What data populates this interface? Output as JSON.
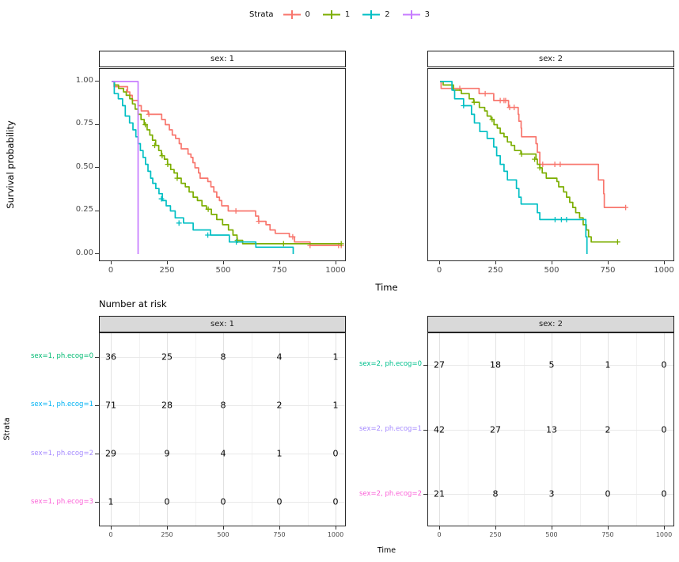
{
  "legend": {
    "title": "Strata",
    "items": [
      {
        "label": "0",
        "color": "#F8766D"
      },
      {
        "label": "1",
        "color": "#7CAE00"
      },
      {
        "label": "2",
        "color": "#00BFC4"
      },
      {
        "label": "3",
        "color": "#C77CFF"
      }
    ]
  },
  "facets": [
    {
      "title": "sex: 1"
    },
    {
      "title": "sex: 2"
    }
  ],
  "axes": {
    "y_label": "Survival probability",
    "y_ticks": [
      "1.00",
      "0.75",
      "0.50",
      "0.25",
      "0.00"
    ],
    "x_ticks": [
      "0",
      "250",
      "500",
      "750",
      "1000"
    ],
    "x_label": "Time"
  },
  "risk_table": {
    "title": "Number at risk",
    "y_label": "Strata",
    "x_label": "Time",
    "x_ticks": [
      "0",
      "250",
      "500",
      "750",
      "1000"
    ],
    "facets": [
      {
        "title": "sex: 1",
        "rows": [
          {
            "label": "sex=1, ph.ecog=0",
            "color": "#00BA72",
            "values": [
              36,
              25,
              8,
              4,
              1
            ]
          },
          {
            "label": "sex=1, ph.ecog=1",
            "color": "#00B2F3",
            "values": [
              71,
              28,
              8,
              2,
              1
            ]
          },
          {
            "label": "sex=1, ph.ecog=2",
            "color": "#A58AFF",
            "values": [
              29,
              9,
              4,
              1,
              0
            ]
          },
          {
            "label": "sex=1, ph.ecog=3",
            "color": "#FB61D7",
            "values": [
              1,
              0,
              0,
              0,
              0
            ]
          }
        ]
      },
      {
        "title": "sex: 2",
        "rows": [
          {
            "label": "sex=2, ph.ecog=0",
            "color": "#00C08D",
            "values": [
              27,
              18,
              5,
              1,
              0
            ]
          },
          {
            "label": "sex=2, ph.ecog=1",
            "color": "#A58AFF",
            "values": [
              42,
              27,
              13,
              2,
              0
            ]
          },
          {
            "label": "sex=2, ph.ecog=2",
            "color": "#FB61D7",
            "values": [
              21,
              8,
              3,
              0,
              0
            ]
          }
        ]
      }
    ]
  },
  "chart_data": [
    {
      "type": "line",
      "step": true,
      "title": "sex: 1",
      "xlabel": "Time",
      "ylabel": "Survival probability",
      "xlim": [
        0,
        1050
      ],
      "ylim": [
        0,
        1
      ],
      "x_ticks": [
        0,
        250,
        500,
        750,
        1000
      ],
      "y_ticks": [
        0,
        0.25,
        0.5,
        0.75,
        1
      ],
      "grid": false,
      "legend_position": "top",
      "series": [
        {
          "name": "0",
          "color": "#F8766D",
          "points": [
            [
              0,
              1.0
            ],
            [
              11,
              0.97
            ],
            [
              71,
              0.94
            ],
            [
              81,
              0.92
            ],
            [
              92,
              0.89
            ],
            [
              118,
              0.86
            ],
            [
              132,
              0.83
            ],
            [
              163,
              0.81
            ],
            [
              223,
              0.78
            ],
            [
              239,
              0.75
            ],
            [
              257,
              0.72
            ],
            [
              270,
              0.69
            ],
            [
              285,
              0.67
            ],
            [
              301,
              0.64
            ],
            [
              310,
              0.61
            ],
            [
              340,
              0.58
            ],
            [
              353,
              0.56
            ],
            [
              362,
              0.53
            ],
            [
              371,
              0.5
            ],
            [
              387,
              0.47
            ],
            [
              394,
              0.44
            ],
            [
              428,
              0.42
            ],
            [
              442,
              0.39
            ],
            [
              455,
              0.36
            ],
            [
              468,
              0.33
            ],
            [
              480,
              0.31
            ],
            [
              490,
              0.28
            ],
            [
              519,
              0.25
            ],
            [
              641,
              0.22
            ],
            [
              654,
              0.19
            ],
            [
              687,
              0.17
            ],
            [
              705,
              0.14
            ],
            [
              728,
              0.12
            ],
            [
              791,
              0.1
            ],
            [
              814,
              0.07
            ],
            [
              883,
              0.05
            ],
            [
              1022,
              0.05
            ]
          ],
          "censors": [
            [
              66,
              0.94
            ],
            [
              166,
              0.81
            ],
            [
              553,
              0.25
            ],
            [
              655,
              0.19
            ],
            [
              806,
              0.1
            ],
            [
              883,
              0.05
            ],
            [
              1010,
              0.05
            ],
            [
              1022,
              0.05
            ]
          ]
        },
        {
          "name": "1",
          "color": "#7CAE00",
          "points": [
            [
              0,
              1.0
            ],
            [
              13,
              0.98
            ],
            [
              31,
              0.96
            ],
            [
              53,
              0.94
            ],
            [
              65,
              0.92
            ],
            [
              81,
              0.9
            ],
            [
              93,
              0.87
            ],
            [
              105,
              0.84
            ],
            [
              118,
              0.81
            ],
            [
              131,
              0.78
            ],
            [
              145,
              0.75
            ],
            [
              158,
              0.72
            ],
            [
              170,
              0.69
            ],
            [
              182,
              0.66
            ],
            [
              196,
              0.63
            ],
            [
              210,
              0.6
            ],
            [
              222,
              0.57
            ],
            [
              235,
              0.55
            ],
            [
              249,
              0.52
            ],
            [
              263,
              0.49
            ],
            [
              278,
              0.47
            ],
            [
              293,
              0.44
            ],
            [
              310,
              0.41
            ],
            [
              328,
              0.39
            ],
            [
              345,
              0.36
            ],
            [
              363,
              0.33
            ],
            [
              382,
              0.31
            ],
            [
              402,
              0.28
            ],
            [
              422,
              0.26
            ],
            [
              444,
              0.23
            ],
            [
              468,
              0.2
            ],
            [
              494,
              0.17
            ],
            [
              520,
              0.14
            ],
            [
              540,
              0.11
            ],
            [
              558,
              0.08
            ],
            [
              583,
              0.06
            ],
            [
              1022,
              0.06
            ]
          ],
          "censors": [
            [
              150,
              0.75
            ],
            [
              192,
              0.63
            ],
            [
              225,
              0.57
            ],
            [
              250,
              0.52
            ],
            [
              292,
              0.44
            ],
            [
              430,
              0.26
            ],
            [
              560,
              0.08
            ],
            [
              765,
              0.06
            ],
            [
              1022,
              0.06
            ]
          ]
        },
        {
          "name": "2",
          "color": "#00BFC4",
          "points": [
            [
              0,
              1.0
            ],
            [
              12,
              0.93
            ],
            [
              30,
              0.9
            ],
            [
              49,
              0.86
            ],
            [
              61,
              0.8
            ],
            [
              80,
              0.76
            ],
            [
              95,
              0.72
            ],
            [
              108,
              0.68
            ],
            [
              118,
              0.64
            ],
            [
              128,
              0.6
            ],
            [
              140,
              0.56
            ],
            [
              151,
              0.52
            ],
            [
              162,
              0.48
            ],
            [
              174,
              0.44
            ],
            [
              183,
              0.41
            ],
            [
              197,
              0.38
            ],
            [
              211,
              0.35
            ],
            [
              226,
              0.31
            ],
            [
              243,
              0.28
            ],
            [
              262,
              0.25
            ],
            [
              283,
              0.21
            ],
            [
              320,
              0.18
            ],
            [
              363,
              0.14
            ],
            [
              440,
              0.11
            ],
            [
              524,
              0.07
            ],
            [
              642,
              0.04
            ],
            [
              808,
              0.0
            ]
          ],
          "censors": [
            [
              222,
              0.32
            ],
            [
              300,
              0.18
            ],
            [
              428,
              0.11
            ],
            [
              555,
              0.07
            ]
          ]
        },
        {
          "name": "3",
          "color": "#C77CFF",
          "points": [
            [
              0,
              1.0
            ],
            [
              118,
              0.0
            ]
          ],
          "censors": []
        }
      ]
    },
    {
      "type": "line",
      "step": true,
      "title": "sex: 2",
      "xlabel": "Time",
      "ylabel": "Survival probability",
      "xlim": [
        0,
        1050
      ],
      "ylim": [
        0,
        1
      ],
      "x_ticks": [
        0,
        250,
        500,
        750,
        1000
      ],
      "y_ticks": [
        0,
        0.25,
        0.5,
        0.75,
        1
      ],
      "grid": false,
      "legend_position": "top",
      "series": [
        {
          "name": "0",
          "color": "#F8766D",
          "points": [
            [
              0,
              1.0
            ],
            [
              5,
              0.96
            ],
            [
              174,
              0.93
            ],
            [
              239,
              0.89
            ],
            [
              305,
              0.85
            ],
            [
              348,
              0.81
            ],
            [
              351,
              0.77
            ],
            [
              361,
              0.73
            ],
            [
              363,
              0.68
            ],
            [
              427,
              0.64
            ],
            [
              433,
              0.59
            ],
            [
              444,
              0.52
            ],
            [
              687,
              0.52
            ],
            [
              705,
              0.43
            ],
            [
              728,
              0.35
            ],
            [
              731,
              0.27
            ],
            [
              826,
              0.27
            ]
          ],
          "censors": [
            [
              61,
              0.96
            ],
            [
              88,
              0.96
            ],
            [
              201,
              0.93
            ],
            [
              268,
              0.89
            ],
            [
              285,
              0.89
            ],
            [
              292,
              0.89
            ],
            [
              310,
              0.85
            ],
            [
              330,
              0.85
            ],
            [
              457,
              0.52
            ],
            [
              511,
              0.52
            ],
            [
              535,
              0.52
            ],
            [
              826,
              0.27
            ]
          ]
        },
        {
          "name": "1",
          "color": "#7CAE00",
          "points": [
            [
              0,
              1.0
            ],
            [
              14,
              0.98
            ],
            [
              60,
              0.95
            ],
            [
              95,
              0.93
            ],
            [
              130,
              0.9
            ],
            [
              150,
              0.88
            ],
            [
              175,
              0.85
            ],
            [
              199,
              0.83
            ],
            [
              210,
              0.8
            ],
            [
              227,
              0.78
            ],
            [
              240,
              0.75
            ],
            [
              255,
              0.73
            ],
            [
              268,
              0.7
            ],
            [
              285,
              0.68
            ],
            [
              300,
              0.65
            ],
            [
              317,
              0.63
            ],
            [
              332,
              0.6
            ],
            [
              360,
              0.58
            ],
            [
              427,
              0.55
            ],
            [
              433,
              0.52
            ],
            [
              444,
              0.5
            ],
            [
              455,
              0.47
            ],
            [
              473,
              0.44
            ],
            [
              520,
              0.42
            ],
            [
              528,
              0.39
            ],
            [
              550,
              0.36
            ],
            [
              563,
              0.33
            ],
            [
              577,
              0.3
            ],
            [
              591,
              0.27
            ],
            [
              604,
              0.24
            ],
            [
              621,
              0.21
            ],
            [
              637,
              0.17
            ],
            [
              651,
              0.14
            ],
            [
              661,
              0.1
            ],
            [
              673,
              0.07
            ],
            [
              790,
              0.07
            ]
          ],
          "censors": [
            [
              152,
              0.88
            ],
            [
              232,
              0.78
            ],
            [
              363,
              0.58
            ],
            [
              421,
              0.55
            ],
            [
              444,
              0.5
            ],
            [
              790,
              0.07
            ]
          ]
        },
        {
          "name": "2",
          "color": "#00BFC4",
          "points": [
            [
              0,
              1.0
            ],
            [
              53,
              0.95
            ],
            [
              65,
              0.9
            ],
            [
              105,
              0.86
            ],
            [
              140,
              0.81
            ],
            [
              153,
              0.76
            ],
            [
              177,
              0.71
            ],
            [
              210,
              0.67
            ],
            [
              239,
              0.62
            ],
            [
              252,
              0.57
            ],
            [
              268,
              0.52
            ],
            [
              285,
              0.48
            ],
            [
              300,
              0.43
            ],
            [
              340,
              0.38
            ],
            [
              351,
              0.33
            ],
            [
              361,
              0.29
            ],
            [
              433,
              0.24
            ],
            [
              444,
              0.2
            ],
            [
              641,
              0.2
            ],
            [
              649,
              0.1
            ],
            [
              654,
              0.0
            ]
          ],
          "censors": [
            [
              105,
              0.86
            ],
            [
              512,
              0.2
            ],
            [
              540,
              0.2
            ],
            [
              563,
              0.2
            ]
          ]
        }
      ]
    }
  ]
}
